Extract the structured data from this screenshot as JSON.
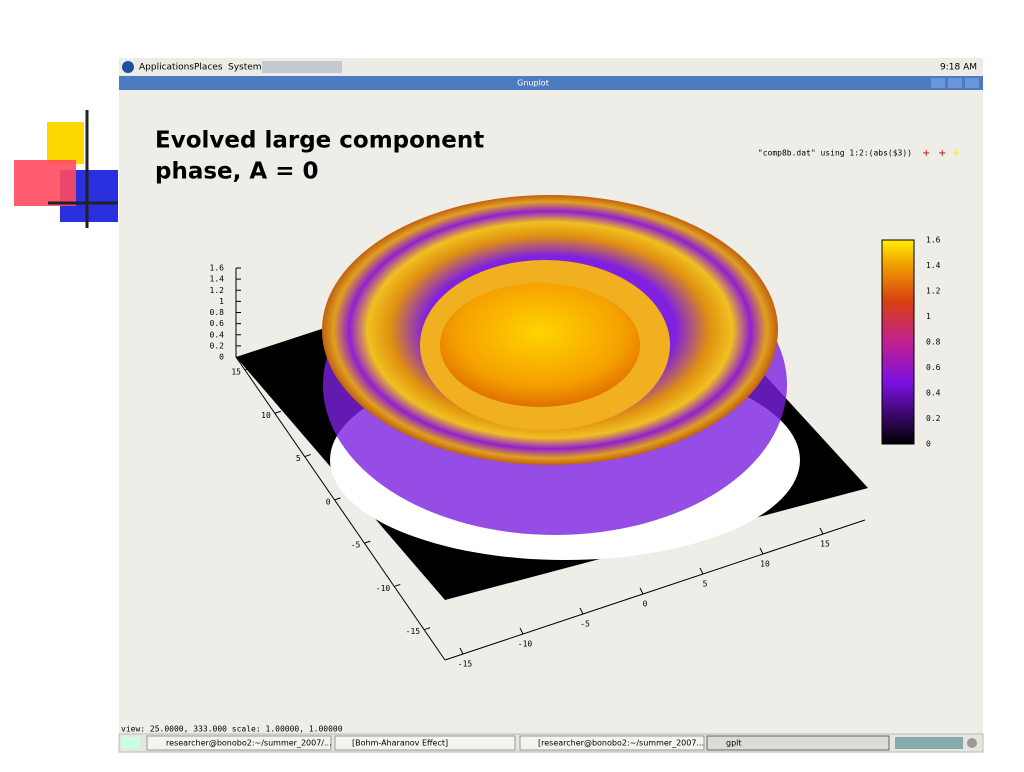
{
  "slide": {
    "title_line1": "Evolved large component",
    "title_line2": "phase, A = 0"
  },
  "top_panel": {
    "menus": [
      "Applications",
      "Places",
      "System"
    ],
    "clock": "9:18 AM"
  },
  "window": {
    "title": "Gnuplot"
  },
  "plot": {
    "legend": "\"comp8b.dat\" using 1:2:(abs($3))",
    "z_ticks": [
      "1.6",
      "1.4",
      "1.2",
      "1",
      "0.8",
      "0.6",
      "0.4",
      "0.2",
      "0"
    ],
    "y_ticks": [
      "15",
      "10",
      "5",
      "0",
      "-5",
      "-10",
      "-15"
    ],
    "x_ticks": [
      "-15",
      "-10",
      "-5",
      "0",
      "5",
      "10",
      "15"
    ],
    "colorbar_ticks": [
      "1.6",
      "1.4",
      "1.2",
      "1",
      "0.8",
      "0.6",
      "0.4",
      "0.2",
      "0"
    ]
  },
  "status": "view:  25.0000,  333.000   scale:  1.00000,  1.00000",
  "taskbar": [
    "researcher@bonobo2:~/summer_2007/...",
    "[Bohm-Aharanov Effect]",
    "[researcher@bonobo2:~/summer_2007...",
    "gplt"
  ]
}
